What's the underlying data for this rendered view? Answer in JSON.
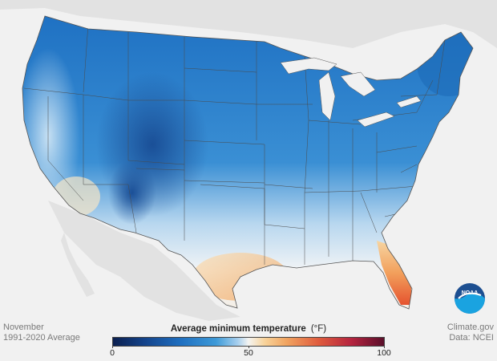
{
  "footer": {
    "month": "November",
    "period": "1991-2020 Average",
    "credit": "Climate.gov",
    "source": "Data: NCEI"
  },
  "legend": {
    "title": "Average minimum temperature",
    "unit": "(°F)",
    "ticks": [
      "0",
      "50",
      "100"
    ],
    "range": [
      0,
      100
    ],
    "colors": [
      "#0b1f4f",
      "#1f6fc0",
      "#a7cfee",
      "#f4f4f2",
      "#f1a460",
      "#b5243f",
      "#5a0f2a"
    ]
  },
  "logo": {
    "text": "NOAA"
  }
}
